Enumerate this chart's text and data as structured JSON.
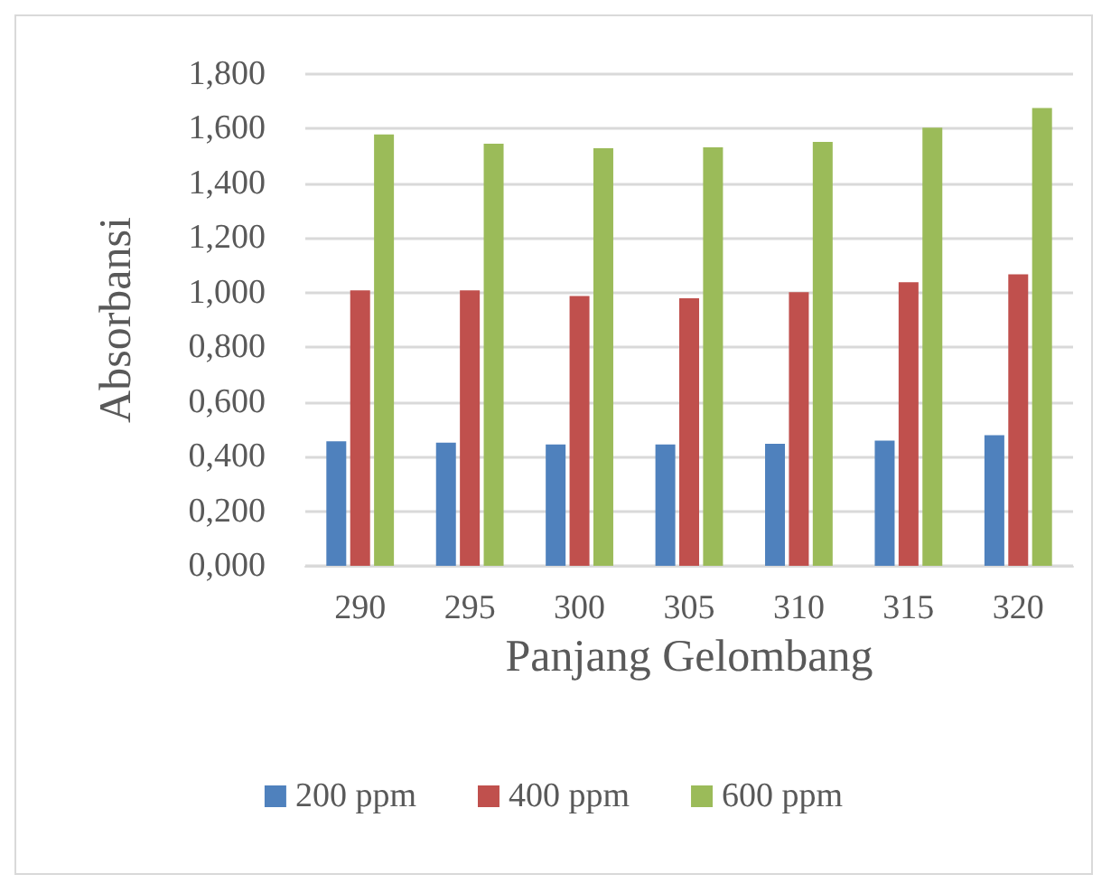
{
  "chart_data": {
    "type": "bar",
    "xlabel": "Panjang Gelombang",
    "ylabel": "Absorbansi",
    "categories": [
      "290",
      "295",
      "300",
      "305",
      "310",
      "315",
      "320"
    ],
    "series": [
      {
        "name": "200 ppm",
        "color": "#4f81bd",
        "values": [
          0.456,
          0.451,
          0.444,
          0.444,
          0.447,
          0.458,
          0.478
        ]
      },
      {
        "name": "400 ppm",
        "color": "#c0504d",
        "values": [
          1.008,
          1.008,
          0.988,
          0.979,
          1.002,
          1.038,
          1.067
        ]
      },
      {
        "name": "600 ppm",
        "color": "#9bbb59",
        "values": [
          1.579,
          1.545,
          1.529,
          1.532,
          1.552,
          1.604,
          1.676
        ]
      }
    ],
    "ylim": [
      0,
      1.8
    ],
    "yticks": [
      {
        "value": 0,
        "label": "0,000"
      },
      {
        "value": 0.2,
        "label": "0,200"
      },
      {
        "value": 0.4,
        "label": "0,400"
      },
      {
        "value": 0.6,
        "label": "0,600"
      },
      {
        "value": 0.8,
        "label": "0,800"
      },
      {
        "value": 1,
        "label": "1,000"
      },
      {
        "value": 1.2,
        "label": "1,200"
      },
      {
        "value": 1.4,
        "label": "1,400"
      },
      {
        "value": 1.6,
        "label": "1,600"
      },
      {
        "value": 1.8,
        "label": "1,800"
      }
    ],
    "grid": "y",
    "legend": "bottom"
  }
}
